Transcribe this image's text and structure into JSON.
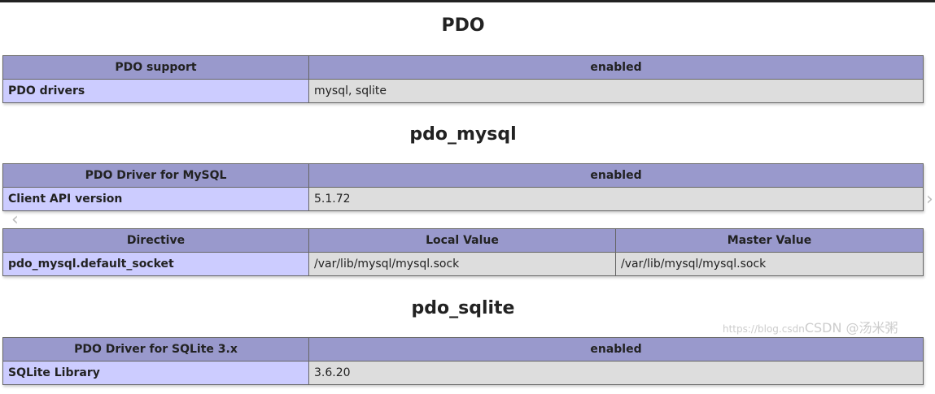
{
  "colors": {
    "header": "#9999cc",
    "key": "#ccccff",
    "value": "#dddddd"
  },
  "sections": [
    {
      "title": "PDO",
      "tables": [
        {
          "headers": [
            "PDO support",
            "enabled"
          ],
          "rows": [
            [
              "PDO drivers",
              "mysql, sqlite"
            ]
          ]
        }
      ]
    },
    {
      "title": "pdo_mysql",
      "tables": [
        {
          "headers": [
            "PDO Driver for MySQL",
            "enabled"
          ],
          "rows": [
            [
              "Client API version",
              "5.1.72"
            ]
          ]
        },
        {
          "headers": [
            "Directive",
            "Local Value",
            "Master Value"
          ],
          "rows": [
            [
              "pdo_mysql.default_socket",
              "/var/lib/mysql/mysql.sock",
              "/var/lib/mysql/mysql.sock"
            ]
          ]
        }
      ]
    },
    {
      "title": "pdo_sqlite",
      "tables": [
        {
          "headers": [
            "PDO Driver for SQLite 3.x",
            "enabled"
          ],
          "rows": [
            [
              "SQLite Library",
              "3.6.20"
            ]
          ]
        }
      ]
    }
  ],
  "overlay": {
    "prev_icon": "chevron-left",
    "next_icon": "chevron-right",
    "watermark_url": "https://blog.csdn",
    "watermark_brand": "CSDN @汤米粥"
  }
}
